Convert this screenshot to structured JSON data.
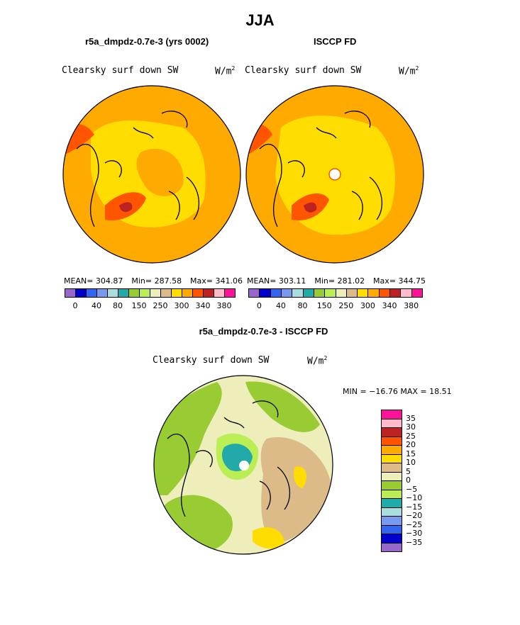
{
  "title": "JJA",
  "panel_left": {
    "subtitle": "r5a_dmpdz-0.7e-3 (yrs 0002)",
    "field": "Clearsky surf down SW",
    "units_base": "W/m",
    "units_exp": "2",
    "stats": {
      "mean": "MEAN= 304.87",
      "min": "Min= 287.58",
      "max": "Max= 341.06"
    }
  },
  "panel_right": {
    "subtitle": "ISCCP FD",
    "field": "Clearsky surf down SW",
    "units_base": "W/m",
    "units_exp": "2",
    "stats": {
      "mean": "MEAN= 303.11",
      "min": "Min= 281.02",
      "max": "Max= 344.75"
    }
  },
  "panel_diff": {
    "subtitle": "r5a_dmpdz-0.7e-3 - ISCCP FD",
    "field": "Clearsky surf down SW",
    "units_base": "W/m",
    "units_exp": "2",
    "minmax": "MIN = −16.76 MAX =  18.51"
  },
  "colorbar_abs": {
    "colors": [
      "#9966cc",
      "#0000cc",
      "#3366ee",
      "#7799ee",
      "#aadddd",
      "#22aaaa",
      "#99cc33",
      "#bbee55",
      "#eeeebb",
      "#ddbb88",
      "#ffdd00",
      "#ffaa00",
      "#ff5500",
      "#bb2222",
      "#ffbbcc",
      "#ff1199"
    ],
    "labels": [
      "0",
      "40",
      "80",
      "150",
      "250",
      "300",
      "340",
      "380"
    ]
  },
  "colorbar_diff": {
    "colors": [
      "#ff1199",
      "#ffbbcc",
      "#bb2222",
      "#ff5500",
      "#ffaa00",
      "#ffdd00",
      "#ddbb88",
      "#eeeebb",
      "#99cc33",
      "#bbee55",
      "#22aaaa",
      "#aadddd",
      "#7799ee",
      "#3366ee",
      "#0000cc",
      "#9966cc"
    ],
    "labels": [
      "35",
      "30",
      "25",
      "20",
      "15",
      "10",
      "5",
      "0",
      "−5",
      "−10",
      "−15",
      "−20",
      "−25",
      "−30",
      "−35"
    ]
  }
}
